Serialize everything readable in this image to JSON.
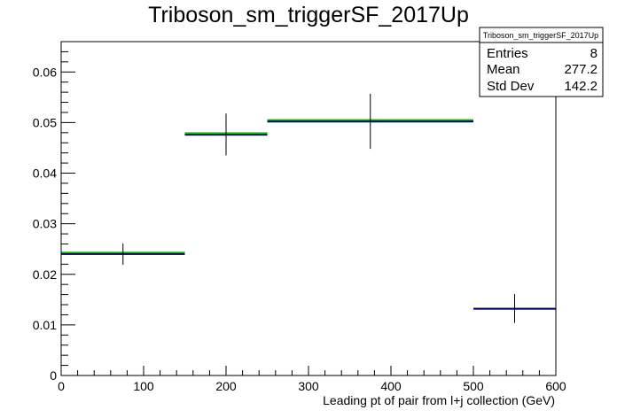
{
  "chart_data": {
    "type": "histogram",
    "title": "Triboson_sm_triggerSF_2017Up",
    "xlabel": "Leading pt of pair from l+j collection (GeV)",
    "ylabel": "",
    "xlim": [
      0,
      600
    ],
    "ylim": [
      0,
      0.066
    ],
    "x_ticks": [
      0,
      100,
      200,
      300,
      400,
      500,
      600
    ],
    "y_ticks": [
      0,
      0.01,
      0.02,
      0.03,
      0.04,
      0.05,
      0.06
    ],
    "x_tick_labels": [
      "0",
      "100",
      "200",
      "300",
      "400",
      "500",
      "600"
    ],
    "y_tick_labels": [
      "0",
      "0.01",
      "0.02",
      "0.03",
      "0.04",
      "0.05",
      "0.06"
    ],
    "grid": false,
    "bins": [
      {
        "low": 0,
        "high": 150,
        "center": 75,
        "value": 0.024,
        "err_low": 0.0219,
        "err_high": 0.0261,
        "green": 0.0243
      },
      {
        "low": 150,
        "high": 250,
        "center": 200,
        "value": 0.0476,
        "err_low": 0.0435,
        "err_high": 0.0518,
        "green": 0.0479
      },
      {
        "low": 250,
        "high": 500,
        "center": 375,
        "value": 0.0502,
        "err_low": 0.0448,
        "err_high": 0.0557,
        "green": 0.0505
      },
      {
        "low": 500,
        "high": 600,
        "center": 550,
        "value": 0.0132,
        "err_low": 0.0104,
        "err_high": 0.0161,
        "green": 0.0132
      }
    ],
    "colors": {
      "main": "#000066",
      "alt": "#00cc00",
      "error": "#000000"
    }
  },
  "stats": {
    "title": "Triboson_sm_triggerSF_2017Up",
    "rows": [
      {
        "label": "Entries",
        "value": "8"
      },
      {
        "label": "Mean",
        "value": "277.2"
      },
      {
        "label": "Std Dev",
        "value": "142.2"
      }
    ]
  }
}
